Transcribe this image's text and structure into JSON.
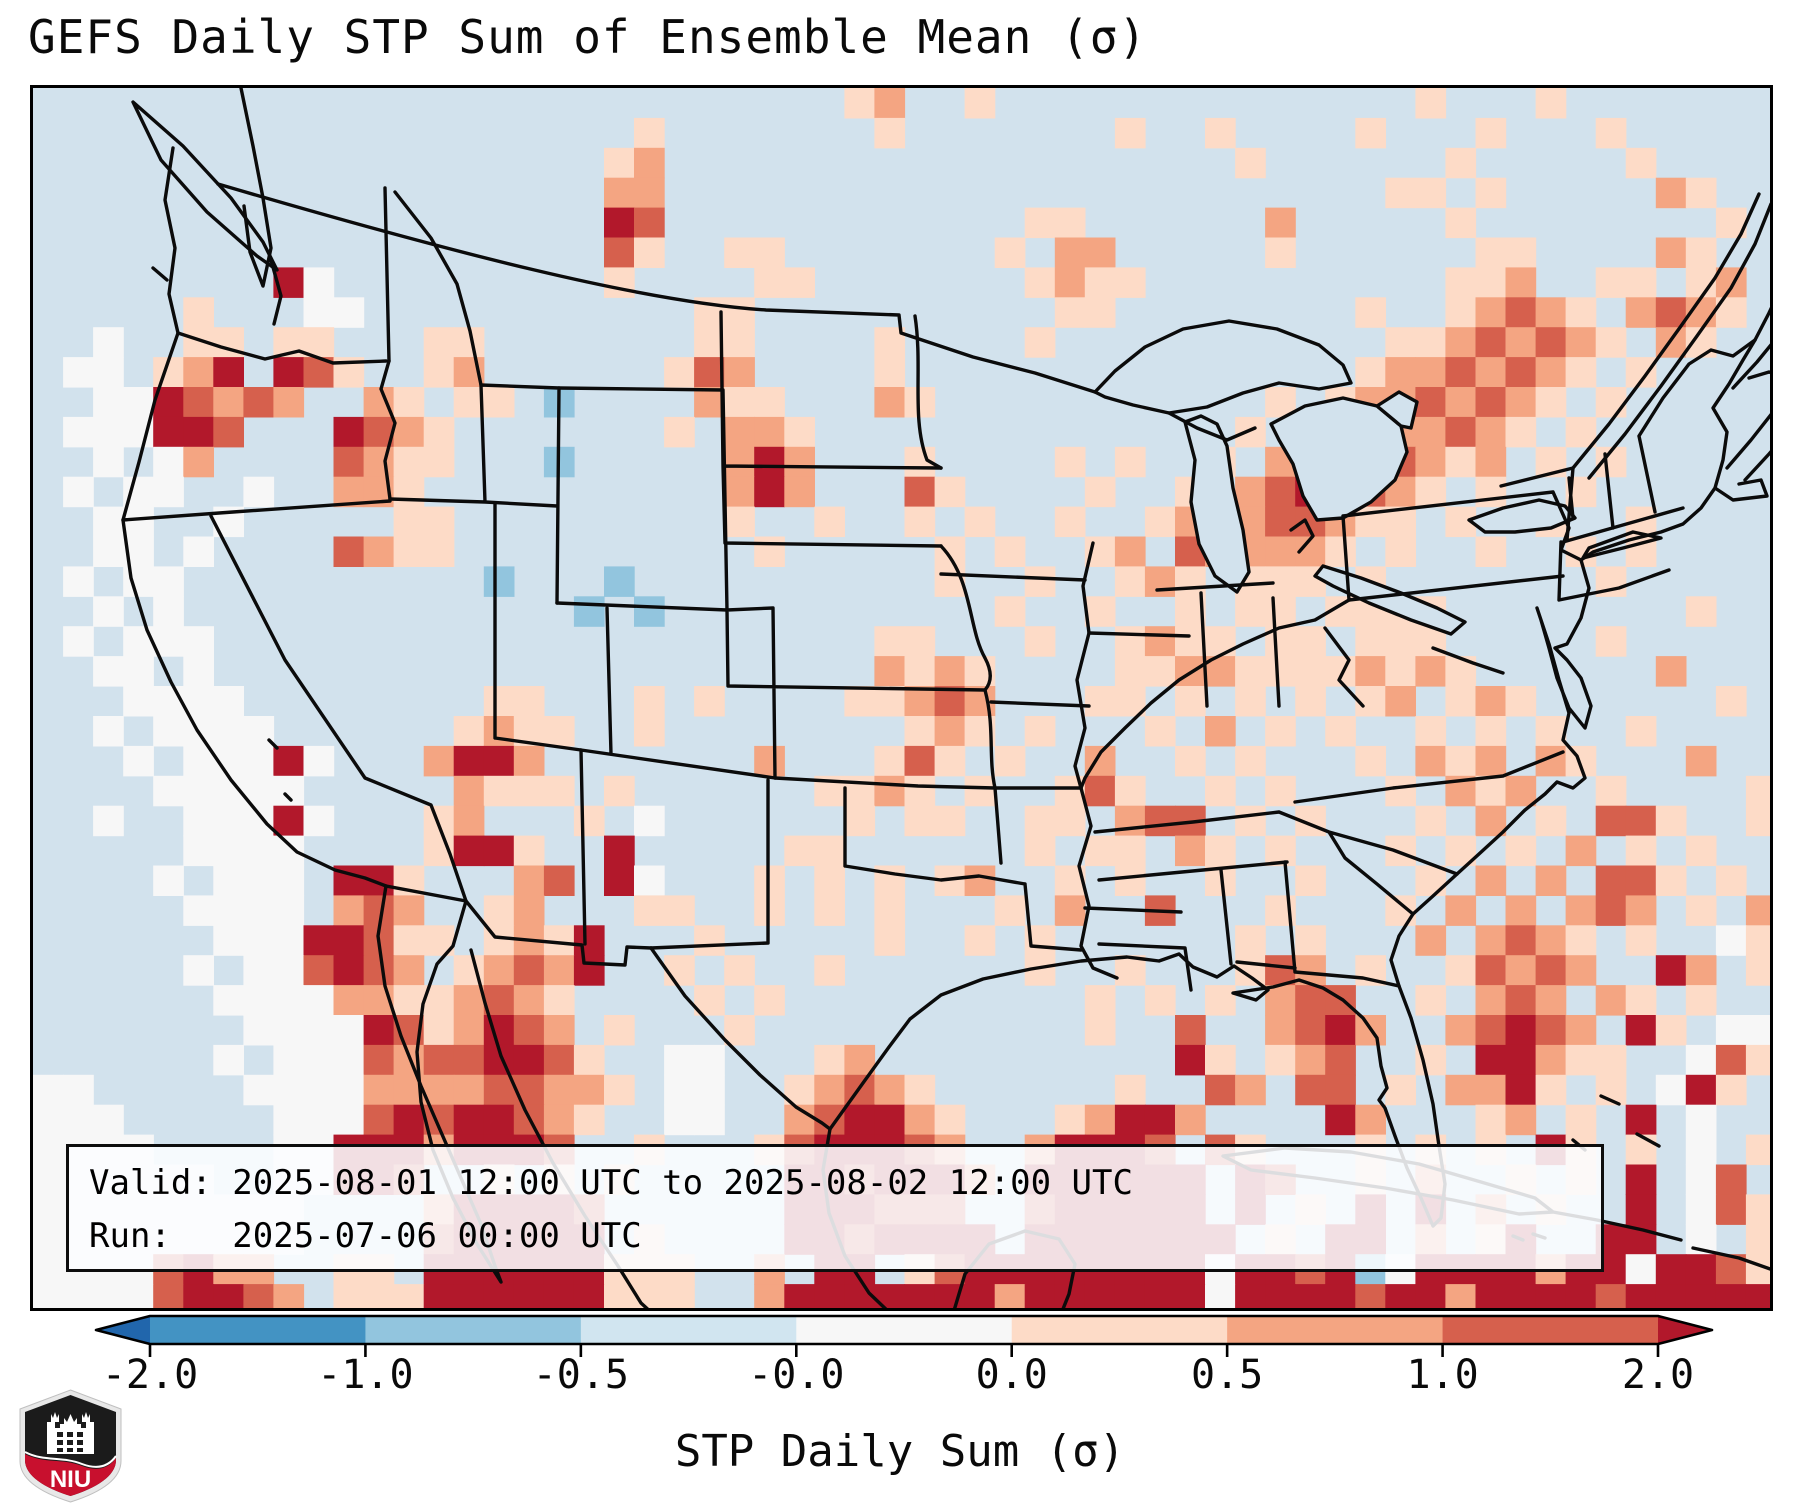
{
  "title": "GEFS Daily STP Sum of Ensemble Mean (σ)",
  "annotation_box": {
    "valid_line": "Valid: 2025-08-01 12:00 UTC to 2025-08-02 12:00 UTC",
    "run_line": "Run:   2025-07-06 00:00 UTC"
  },
  "colorbar": {
    "label": "STP Daily Sum (σ)",
    "tick_labels": [
      "-2.0",
      "-1.0",
      "-0.5",
      "-0.0",
      "0.0",
      "0.5",
      "1.0",
      "2.0"
    ],
    "boundaries": [
      -2.0,
      -1.0,
      -0.5,
      -0.0,
      0.0,
      0.5,
      1.0,
      2.0
    ],
    "segment_colors": [
      "#4393c3",
      "#92c5de",
      "#d1e5f0",
      "#f7f7f7",
      "#fddbc7",
      "#f4a582",
      "#d6604d"
    ],
    "under_arrow_color": "#2166ac",
    "over_arrow_color": "#b2182b"
  },
  "logo": {
    "text": "NIU",
    "shield_dark": "#1b1b1b",
    "shield_red": "#c8102e",
    "shield_rim": "#e8e8e8"
  },
  "map": {
    "background": "#d2e2ed",
    "coastline_color": "#0b0b0b",
    "grid_cols": 58,
    "grid_rows": 41,
    "palette": {
      "w": "#f7f7f7",
      "1": "#fddbc7",
      "2": "#f4a582",
      "3": "#d6604d",
      "4": "#b2182b",
      "b": "#92c5de"
    },
    "grid": [
      "...........................12..1..............1...1......",
      "....................1.......1.......1..1....1...1...1.....",
      "...................12...................1......1.....1....",
      "...................22........................11.1.....21..",
      "...................43............11......2.....1........1.",
      "...................31..11.......1.22.....1......11....21..",
      "........4w.........1....11.......1211..........112..11.12.",
      ".....1...ww...........11..........11........1..12321.2321.",
      "..w..11.11...11.......11....1....1...........11232321.21..",
      ".ww.124.431..12......132....1...............12232321.1....",
      "..ww43232..21.11.b....211...21...........1.12232321.1.....",
      ".www443...4321.......1.221..............1.22322321.1......",
      "..w.w2....3211...b.....242...1....1.1..1.23323212.1.1.....",
      ".w.ww..w..221..........242...31....1..1.2343321.1..1......",
      "..ww..w.....11.........1..1..1.1..1..12.233211.1..1..1....",
      "..ww.w....3211..........1.....1.1..12.322221.1..1..1.1....",
      ".w.ww..........b...b..........1..1..121.111.1.......1.....",
      "..w.w.............b.b...........1..1..1.11.1111........1..",
      ".w.www......................11...1..1211.11.111.....1.....",
      "..ww.w......................2121....112211112121......2...",
      "...wwww........11...1.1....11232...11.1.1.1.12.121......1.",
      "..w.wwww......1211..1........121.1...1.2.1.1..1.1.1..1....",
      "...w.www4w...2442.......2...131.1..2..1.1...1.212.21...2..",
      "....wwwww.....2111.1......1121.1..131..1.1...1.212..1....1",
      "..w..www4w...12...1.w......1.11..11.233.1.1...1.2.1.331..1",
      ".....wwww....1441..4.....11......1.11.21.1...1.1.1.2.1.1..",
      "....w.www.441...23.4w...1.1.1.12..1.1..1..1...1.2.2.331.1.",
      ".....wwww.232..12...11..1.1.1...1.2..3...1...1.2.2.232.1.2",
      "......www44311.1214...1.....1..1.1......1.1...2.2321.1..w1",
      ".....w.ww3432.12324..1.1..1......1..1...132.1..13232..42.1",
      "......wwww22112321....1.1..........1.1.1.233..1.232.21.1..",
      ".......wwww4312432.1...1...........1..3..2342..23432.41.ww",
      "......w.www32334431..ww...12..........41.123..1.44211..w31",
      "ww.....wwww222233221.ww..12321......1..32.33.1.2241.1.w41.",
      "www.....www34344321..ww..234421...12442....42...12.1.4.w..",
      "wwww....ww44424443..1...1344432..24443.31...1.1.1.41.1.w.1",
      "wwwwww..ww443..1.1.1.....4434442.444444.43..1.2..1.1.4.w3.",
      "wwwwwwwww....244443......444333..344444.4.1.4.4.2.1..4.w31",
      "wwwwwwwww....344444.1....4434444.4444444.1.44.2.14..44.w.1",
      "wwww3422..11.444444111..2.44.1344444444w4434bw4444244w4431",
      "wwww34432.111444444111..244444442444444w444434424444344444"
    ]
  }
}
